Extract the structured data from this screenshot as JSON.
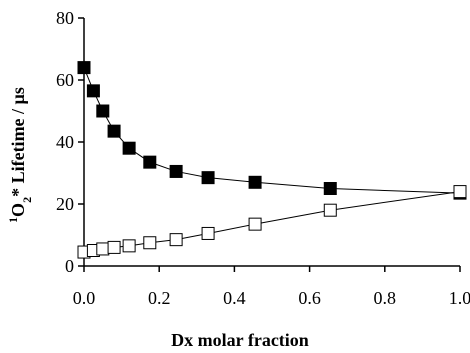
{
  "chart_data": {
    "type": "scatter",
    "xlabel": "Dx molar fraction",
    "ylabel": {
      "prefix": "1",
      "base": "O",
      "sub": "2",
      "rest": "* Lifetime / µs"
    },
    "xlim": [
      0,
      1.0
    ],
    "ylim": [
      0,
      80
    ],
    "xticks": [
      "0.0",
      "0.2",
      "0.4",
      "0.6",
      "0.8",
      "1.0"
    ],
    "yticks": [
      "0",
      "20",
      "40",
      "60",
      "80"
    ],
    "grid": false,
    "series": [
      {
        "marker": "filled-square",
        "line": true,
        "x": [
          0.0,
          0.025,
          0.05,
          0.08,
          0.12,
          0.175,
          0.245,
          0.33,
          0.455,
          0.655,
          1.0
        ],
        "y": [
          64,
          56.5,
          50,
          43.5,
          38,
          33.5,
          30.5,
          28.5,
          27,
          25,
          23.5
        ]
      },
      {
        "marker": "open-square",
        "line": true,
        "x": [
          0.0,
          0.025,
          0.05,
          0.08,
          0.12,
          0.175,
          0.245,
          0.33,
          0.455,
          0.655,
          1.0
        ],
        "y": [
          4.5,
          5,
          5.5,
          6,
          6.5,
          7.5,
          8.5,
          10.5,
          13.5,
          18,
          24
        ]
      }
    ],
    "colors": {
      "axis": "#000000",
      "line": "#000000",
      "filled_marker": "#000000",
      "open_marker_fill": "#ffffff"
    }
  }
}
